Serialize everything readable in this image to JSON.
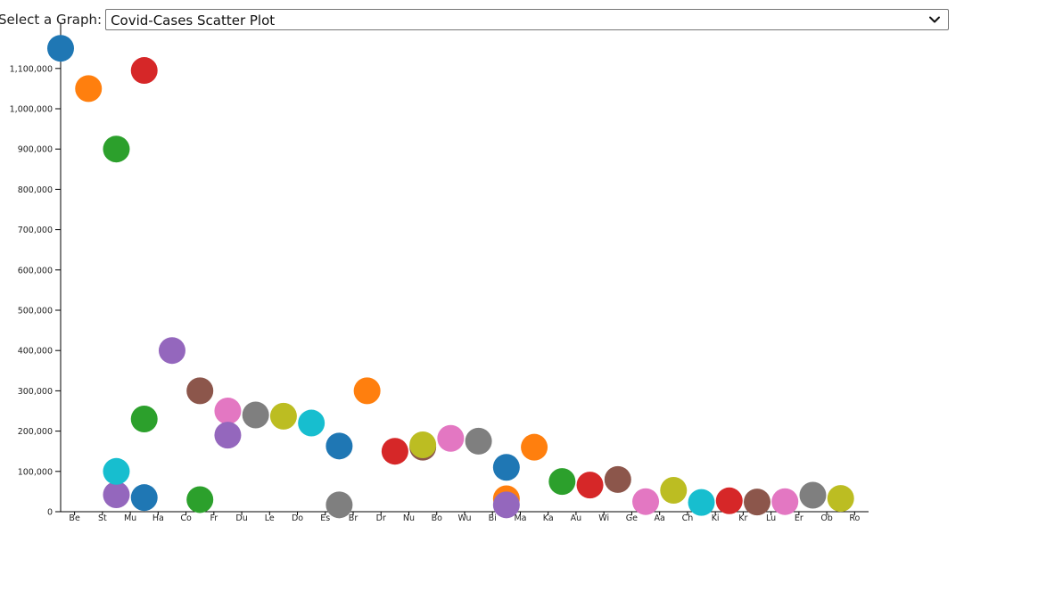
{
  "control": {
    "label": "Select a Graph:",
    "selected": "Covid-Cases Scatter Plot",
    "icon": "chevron-down-icon"
  },
  "chart_data": {
    "type": "scatter",
    "title": "",
    "xlabel": "",
    "ylabel": "",
    "ylim": [
      0,
      1200000
    ],
    "y_ticks": [
      0,
      100000,
      200000,
      300000,
      400000,
      500000,
      600000,
      700000,
      800000,
      900000,
      1000000,
      1100000
    ],
    "y_tick_labels": [
      "0",
      "100,000",
      "200,000",
      "300,000",
      "400,000",
      "500,000",
      "600,000",
      "700,000",
      "800,000",
      "900,000",
      "1,000,000",
      "1,100,000"
    ],
    "categories": [
      "Be",
      "St",
      "Mu",
      "Ha",
      "Co",
      "Fr",
      "Du",
      "Le",
      "Do",
      "Es",
      "Br",
      "Dr",
      "Nu",
      "Bo",
      "Wu",
      "Bi",
      "Ma",
      "Ka",
      "Au",
      "Wi",
      "Ge",
      "Aa",
      "Ch",
      "Ki",
      "Kr",
      "Lu",
      "Er",
      "Ob",
      "Ro"
    ],
    "grid": false,
    "palette": [
      "#1f77b4",
      "#ff7f0e",
      "#2ca02c",
      "#d62728",
      "#9467bd",
      "#8c564b",
      "#e377c2",
      "#7f7f7f",
      "#bcbd22",
      "#17becf"
    ],
    "points": [
      {
        "x": "Be",
        "offset": -0.5,
        "y": 1150000,
        "color": "#1f77b4"
      },
      {
        "x": "St",
        "offset": -0.5,
        "y": 1050000,
        "color": "#ff7f0e"
      },
      {
        "x": "Mu",
        "offset": -0.5,
        "y": 900000,
        "color": "#2ca02c"
      },
      {
        "x": "Ha",
        "offset": -0.5,
        "y": 1095000,
        "color": "#d62728"
      },
      {
        "x": "Mu",
        "offset": -0.5,
        "y": 42000,
        "color": "#9467bd"
      },
      {
        "x": "Mu",
        "offset": -0.5,
        "y": 100000,
        "color": "#17becf"
      },
      {
        "x": "Ha",
        "offset": -0.5,
        "y": 230000,
        "color": "#2ca02c"
      },
      {
        "x": "Ha",
        "offset": -0.5,
        "y": 35000,
        "color": "#1f77b4"
      },
      {
        "x": "Co",
        "offset": -0.5,
        "y": 400000,
        "color": "#9467bd"
      },
      {
        "x": "Fr",
        "offset": -0.5,
        "y": 300000,
        "color": "#8c564b"
      },
      {
        "x": "Fr",
        "offset": -0.5,
        "y": 30000,
        "color": "#2ca02c"
      },
      {
        "x": "Du",
        "offset": -0.5,
        "y": 250000,
        "color": "#e377c2"
      },
      {
        "x": "Du",
        "offset": -0.5,
        "y": 190000,
        "color": "#9467bd"
      },
      {
        "x": "Le",
        "offset": -0.5,
        "y": 240000,
        "color": "#7f7f7f"
      },
      {
        "x": "Do",
        "offset": -0.5,
        "y": 237000,
        "color": "#bcbd22"
      },
      {
        "x": "Es",
        "offset": -0.5,
        "y": 220000,
        "color": "#17becf"
      },
      {
        "x": "Br",
        "offset": -0.5,
        "y": 163000,
        "color": "#1f77b4"
      },
      {
        "x": "Br",
        "offset": -0.5,
        "y": 17000,
        "color": "#7f7f7f"
      },
      {
        "x": "Dr",
        "offset": -0.5,
        "y": 300000,
        "color": "#ff7f0e"
      },
      {
        "x": "Nu",
        "offset": -0.5,
        "y": 150000,
        "color": "#d62728"
      },
      {
        "x": "Bo",
        "offset": -0.5,
        "y": 160000,
        "color": "#8c564b"
      },
      {
        "x": "Bo",
        "offset": -0.5,
        "y": 166000,
        "color": "#bcbd22"
      },
      {
        "x": "Wu",
        "offset": -0.5,
        "y": 182000,
        "color": "#e377c2"
      },
      {
        "x": "Bi",
        "offset": -0.5,
        "y": 175000,
        "color": "#7f7f7f"
      },
      {
        "x": "Ma",
        "offset": -0.5,
        "y": 110000,
        "color": "#1f77b4"
      },
      {
        "x": "Ma",
        "offset": -0.5,
        "y": 32000,
        "color": "#ff7f0e"
      },
      {
        "x": "Ma",
        "offset": -0.5,
        "y": 17000,
        "color": "#9467bd"
      },
      {
        "x": "Ka",
        "offset": -0.5,
        "y": 160000,
        "color": "#ff7f0e"
      },
      {
        "x": "Au",
        "offset": -0.5,
        "y": 75000,
        "color": "#2ca02c"
      },
      {
        "x": "Wi",
        "offset": -0.5,
        "y": 66000,
        "color": "#d62728"
      },
      {
        "x": "Ge",
        "offset": -0.5,
        "y": 80000,
        "color": "#8c564b"
      },
      {
        "x": "Aa",
        "offset": -0.5,
        "y": 25000,
        "color": "#e377c2"
      },
      {
        "x": "Ch",
        "offset": -0.5,
        "y": 53000,
        "color": "#bcbd22"
      },
      {
        "x": "Ki",
        "offset": -0.5,
        "y": 23000,
        "color": "#17becf"
      },
      {
        "x": "Kr",
        "offset": -0.5,
        "y": 27000,
        "color": "#d62728"
      },
      {
        "x": "Lu",
        "offset": -0.5,
        "y": 24000,
        "color": "#8c564b"
      },
      {
        "x": "Er",
        "offset": -0.5,
        "y": 25000,
        "color": "#e377c2"
      },
      {
        "x": "Ob",
        "offset": -0.5,
        "y": 41000,
        "color": "#7f7f7f"
      },
      {
        "x": "Ro",
        "offset": -0.5,
        "y": 33000,
        "color": "#bcbd22"
      }
    ]
  }
}
